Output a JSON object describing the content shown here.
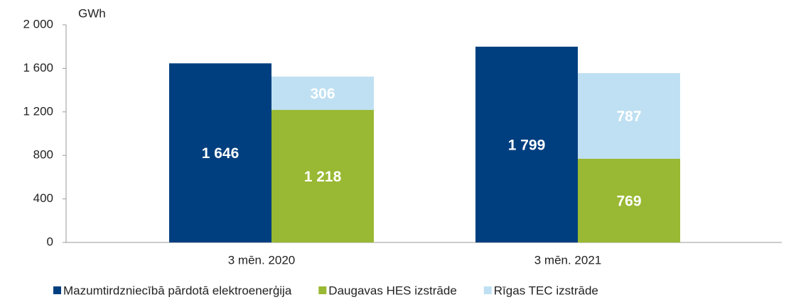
{
  "chart_data": {
    "type": "bar",
    "y_label": "GWh",
    "categories": [
      "3 mēn. 2020",
      "3 mēn. 2021"
    ],
    "series": [
      {
        "name": "Mazumtirdzniecībā pārdotā elektroenerģija",
        "color": "#003f7f",
        "stack": "retail",
        "values": [
          1646,
          1799
        ],
        "value_labels": [
          "1 646",
          "1 799"
        ]
      },
      {
        "name": "Daugavas HES izstrāde",
        "color": "#99b833",
        "stack": "generation",
        "values": [
          1218,
          769
        ],
        "value_labels": [
          "1 218",
          "769"
        ]
      },
      {
        "name": "Rīgas TEC izstrāde",
        "color": "#bfe0f2",
        "stack": "generation",
        "values": [
          306,
          787
        ],
        "value_labels": [
          "306",
          "787"
        ]
      }
    ],
    "ylim": [
      0,
      2000
    ],
    "yticks": [
      0,
      400,
      800,
      {
        "value": 1200,
        "label": "1 200"
      },
      {
        "value": 1600,
        "label": "1 600"
      },
      {
        "value": 2000,
        "label": "2 000"
      }
    ],
    "legend": "bottom"
  }
}
